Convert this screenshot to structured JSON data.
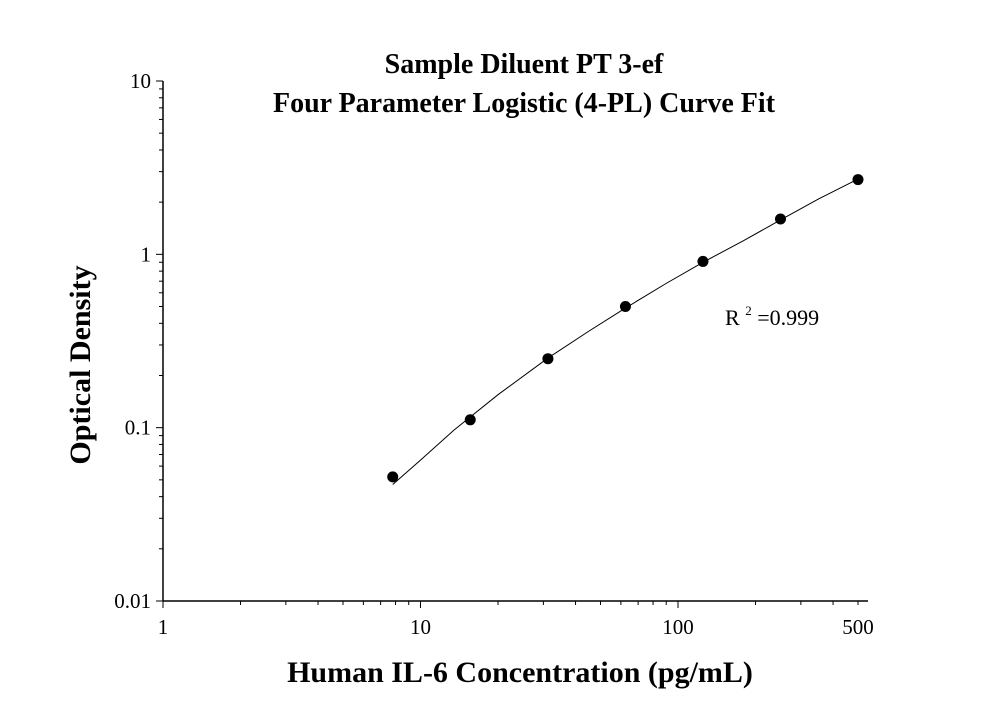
{
  "chart_data": {
    "type": "scatter",
    "title_line1": "Sample Diluent PT 3-ef",
    "title_line2": "Four Parameter Logistic (4-PL) Curve Fit",
    "xlabel": "Human IL-6 Concentration (pg/mL)",
    "ylabel": "Optical Density",
    "x_scale": "log",
    "y_scale": "log",
    "xlim": [
      1,
      500
    ],
    "ylim": [
      0.01,
      10
    ],
    "x_ticks": [
      {
        "value": 1,
        "label": "1"
      },
      {
        "value": 10,
        "label": "10"
      },
      {
        "value": 100,
        "label": "100"
      },
      {
        "value": 500,
        "label": "500"
      }
    ],
    "y_ticks": [
      {
        "value": 0.01,
        "label": "0.01"
      },
      {
        "value": 0.1,
        "label": "0.1"
      },
      {
        "value": 1,
        "label": "1"
      },
      {
        "value": 10,
        "label": "10"
      }
    ],
    "grid": false,
    "points": [
      {
        "x": 7.8,
        "y": 0.052
      },
      {
        "x": 15.6,
        "y": 0.111
      },
      {
        "x": 31.25,
        "y": 0.25
      },
      {
        "x": 62.5,
        "y": 0.5
      },
      {
        "x": 125,
        "y": 0.91
      },
      {
        "x": 250,
        "y": 1.6
      },
      {
        "x": 500,
        "y": 2.7
      }
    ],
    "fit_curve": {
      "model": "4-PL",
      "points": [
        {
          "x": 7.8,
          "y": 0.047
        },
        {
          "x": 10,
          "y": 0.065
        },
        {
          "x": 13.5,
          "y": 0.097
        },
        {
          "x": 20,
          "y": 0.155
        },
        {
          "x": 31.25,
          "y": 0.252
        },
        {
          "x": 45,
          "y": 0.36
        },
        {
          "x": 62.5,
          "y": 0.49
        },
        {
          "x": 90,
          "y": 0.68
        },
        {
          "x": 125,
          "y": 0.9
        },
        {
          "x": 180,
          "y": 1.2
        },
        {
          "x": 250,
          "y": 1.58
        },
        {
          "x": 350,
          "y": 2.08
        },
        {
          "x": 500,
          "y": 2.72
        }
      ]
    },
    "annotation": {
      "base": "R",
      "superscript": "2",
      "value_text": "=0.999"
    },
    "colors": {
      "marker": "#000000",
      "curve": "#000000",
      "axis": "#000000"
    }
  }
}
